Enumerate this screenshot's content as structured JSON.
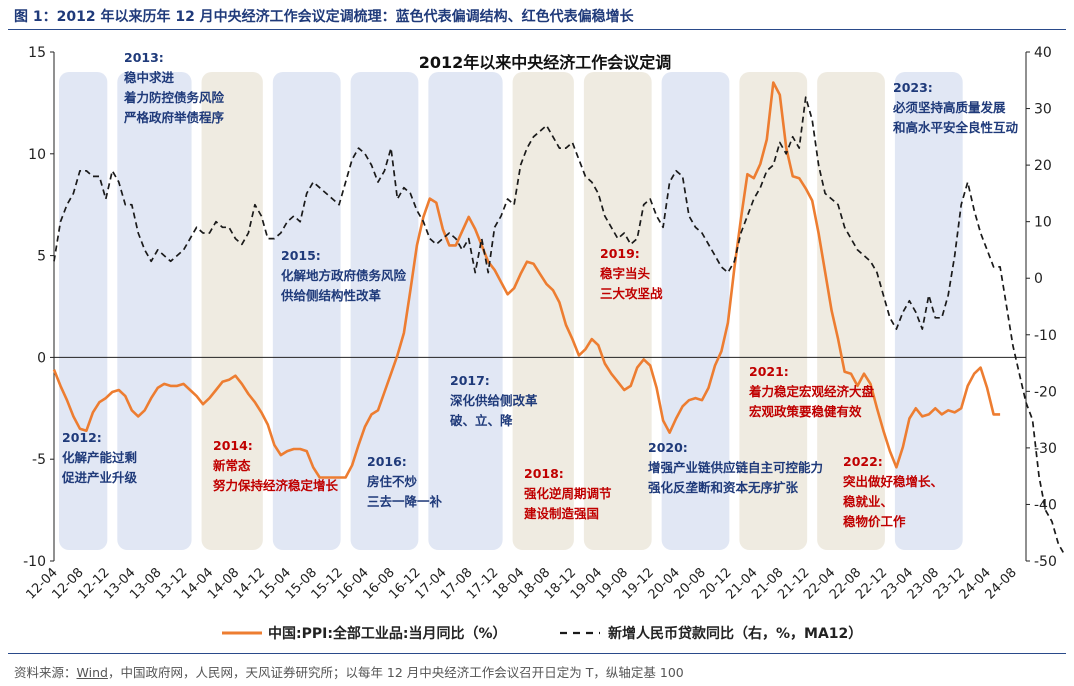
{
  "figure": {
    "title": "图 1：2012 年以来历年 12 月中央经济工作会议定调梳理：蓝色代表偏调结构、红色代表偏稳增长",
    "source_prefix": "资料来源：",
    "source_wind": "Wind",
    "source_rest": "，中国政府网，人民网，天风证券研究所；以每年 12 月中央经济工作会议召开日定为 T，纵轴定基 100"
  },
  "colors": {
    "ppi_line": "#ed7d31",
    "loan_line": "#1a1a1a",
    "blue_text": "#1f3a7a",
    "red_text": "#c00000",
    "blue_band": "#dce3f2",
    "beige_band": "#ece8dc"
  },
  "chart_data": {
    "type": "line",
    "title": "2012年以来中央经济工作会议定调",
    "left_axis": {
      "ylim": [
        -10,
        15
      ],
      "ticks": [
        "15",
        "10",
        "5",
        "0",
        "-5",
        "-10"
      ]
    },
    "right_axis": {
      "ylim": [
        -50,
        40
      ],
      "ticks": [
        "40",
        "30",
        "20",
        "10",
        "0",
        "-10",
        "-20",
        "-30",
        "-40",
        "-50"
      ]
    },
    "x_ticks": [
      "12-04",
      "12-08",
      "12-12",
      "13-04",
      "13-08",
      "13-12",
      "14-04",
      "14-08",
      "14-12",
      "15-04",
      "15-08",
      "15-12",
      "16-04",
      "16-08",
      "16-12",
      "17-04",
      "17-08",
      "17-12",
      "18-04",
      "18-08",
      "18-12",
      "19-04",
      "19-08",
      "19-12",
      "20-04",
      "20-08",
      "20-12",
      "21-04",
      "21-08",
      "21-12",
      "22-04",
      "22-08",
      "22-12",
      "23-04",
      "23-08",
      "23-12",
      "24-04",
      "24-08"
    ],
    "legend_position": "bottom",
    "series": [
      {
        "name": "中国:PPI:全部工业品:当月同比（%）",
        "axis": "left",
        "style": "solid",
        "values": [
          -0.6,
          -1.4,
          -2.1,
          -2.9,
          -3.5,
          -3.6,
          -2.7,
          -2.2,
          -2.0,
          -1.7,
          -1.6,
          -1.9,
          -2.6,
          -2.9,
          -2.6,
          -2.0,
          -1.5,
          -1.3,
          -1.4,
          -1.4,
          -1.3,
          -1.6,
          -1.9,
          -2.3,
          -2.0,
          -1.6,
          -1.2,
          -1.1,
          -0.9,
          -1.3,
          -1.8,
          -2.2,
          -2.7,
          -3.3,
          -4.3,
          -4.8,
          -4.6,
          -4.5,
          -4.5,
          -4.6,
          -5.4,
          -5.9,
          -5.9,
          -5.9,
          -5.9,
          -5.9,
          -5.3,
          -4.3,
          -3.4,
          -2.8,
          -2.6,
          -1.7,
          -0.8,
          0.1,
          1.2,
          3.3,
          5.5,
          6.9,
          7.8,
          7.6,
          6.3,
          5.5,
          5.5,
          6.2,
          6.9,
          6.3,
          5.5,
          4.7,
          4.3,
          3.7,
          3.1,
          3.4,
          4.1,
          4.7,
          4.6,
          4.1,
          3.6,
          3.3,
          2.7,
          1.6,
          0.9,
          0.1,
          0.4,
          0.9,
          0.6,
          -0.3,
          -0.8,
          -1.2,
          -1.6,
          -1.4,
          -0.5,
          -0.1,
          -0.4,
          -1.5,
          -3.1,
          -3.7,
          -3.0,
          -2.4,
          -2.1,
          -2.0,
          -2.1,
          -1.5,
          -0.4,
          0.3,
          1.7,
          4.4,
          6.8,
          9.0,
          8.8,
          9.5,
          10.7,
          13.5,
          12.9,
          10.3,
          8.9,
          8.8,
          8.3,
          7.7,
          6.1,
          4.2,
          2.3,
          0.9,
          -0.7,
          -0.8,
          -1.4,
          -0.8,
          -1.3,
          -2.5,
          -3.6,
          -4.6,
          -5.4,
          -4.4,
          -3.0,
          -2.5,
          -2.9,
          -2.8,
          -2.5,
          -2.8,
          -2.6,
          -2.7,
          -2.5,
          -1.4,
          -0.8,
          -0.5,
          -1.5,
          -2.8,
          -2.8
        ],
        "peak_annotation": {
          "x": "21-10",
          "value": 13.5
        },
        "trough_annotations": [
          {
            "x": "15-12",
            "value": -5.9
          },
          {
            "x": "23-06",
            "value": -5.4
          }
        ]
      },
      {
        "name": "新增人民币贷款同比（右，%，MA12）",
        "axis": "right",
        "style": "dashed",
        "values": [
          3,
          10,
          13,
          15,
          19,
          19,
          18,
          18,
          14,
          19,
          17,
          13,
          13,
          8,
          5,
          3,
          5,
          4,
          3,
          4,
          5,
          7,
          9,
          8,
          8,
          10,
          9,
          9,
          7,
          6,
          8,
          13,
          11,
          7,
          7,
          8,
          10,
          11,
          10,
          15,
          17,
          16,
          15,
          14,
          13,
          17,
          21,
          23,
          22,
          20,
          17,
          19,
          23,
          14,
          16,
          15,
          12,
          10,
          7,
          6,
          7,
          8,
          7,
          5,
          7,
          1,
          7,
          1,
          9,
          11,
          14,
          13,
          20,
          23,
          25,
          26,
          27,
          25,
          23,
          23,
          24,
          21,
          18,
          17,
          15,
          11,
          9,
          7,
          8,
          6,
          7,
          13,
          14,
          11,
          9,
          17,
          19,
          18,
          11,
          9,
          8,
          6,
          4,
          2,
          1,
          3,
          8,
          11,
          14,
          16,
          19,
          20,
          24,
          22,
          25,
          23,
          32,
          28,
          20,
          15,
          14,
          13,
          9,
          7,
          5,
          4,
          3,
          1,
          -3,
          -7,
          -9,
          -6,
          -4,
          -6,
          -9,
          -3,
          -7,
          -7,
          -3,
          4,
          13,
          17,
          12,
          8,
          5,
          2,
          2,
          -5,
          -12,
          -17,
          -22,
          -25,
          -35,
          -41,
          -43,
          -47,
          -49
        ]
      }
    ],
    "bands": [
      {
        "color": "blue",
        "from": "12-01",
        "to": "13-01"
      },
      {
        "color": "blue",
        "from": "13-01",
        "to": "14-02"
      },
      {
        "color": "beige",
        "from": "14-02",
        "to": "15-01"
      },
      {
        "color": "blue",
        "from": "15-01",
        "to": "16-01"
      },
      {
        "color": "blue",
        "from": "16-01",
        "to": "17-01"
      },
      {
        "color": "blue",
        "from": "17-01",
        "to": "18-02"
      },
      {
        "color": "beige",
        "from": "18-02",
        "to": "19-01"
      },
      {
        "color": "beige",
        "from": "19-01",
        "to": "20-01"
      },
      {
        "color": "blue",
        "from": "20-01",
        "to": "21-01"
      },
      {
        "color": "beige",
        "from": "21-01",
        "to": "22-01"
      },
      {
        "color": "beige",
        "from": "22-01",
        "to": "23-01"
      },
      {
        "color": "blue",
        "from": "23-01",
        "to": "24-01"
      }
    ],
    "annotations": [
      {
        "color": "blue",
        "at": "13-03",
        "lines": [
          "2013:",
          "稳中求进",
          "着力防控债务风险",
          "严格政府举债程序"
        ]
      },
      {
        "color": "blue",
        "at": "12-01",
        "lines": [
          "2012:",
          "化解产能过剩",
          "促进产业升级"
        ]
      },
      {
        "color": "red",
        "at": "14-02",
        "lines": [
          "2014:",
          "新常态",
          "努力保持经济稳定增长"
        ]
      },
      {
        "color": "blue",
        "at": "15-01",
        "lines": [
          "2015:",
          "化解地方政府债务风险",
          "供给侧结构性改革"
        ]
      },
      {
        "color": "blue",
        "at": "16-01",
        "lines": [
          "2016:",
          "房住不炒",
          "三去一降一补"
        ]
      },
      {
        "color": "blue",
        "at": "17-01",
        "lines": [
          "2017:",
          "深化供给侧改革",
          "破、立、降"
        ]
      },
      {
        "color": "red",
        "at": "18-02",
        "lines": [
          "2018:",
          "强化逆周期调节",
          "建设制造强国"
        ]
      },
      {
        "color": "red",
        "at": "19-01",
        "lines": [
          "2019:",
          "稳字当头",
          "三大攻坚战"
        ]
      },
      {
        "color": "blue",
        "at": "20-01",
        "lines": [
          "2020:",
          "增强产业链供应链自主可控能力",
          "强化反垄断和资本无序扩张"
        ]
      },
      {
        "color": "red",
        "at": "21-01",
        "lines": [
          "2021:",
          "着力稳定宏观经济大盘",
          "宏观政策要稳健有效"
        ]
      },
      {
        "color": "red",
        "at": "22-01",
        "lines": [
          "2022:",
          "突出做好稳增长、",
          "稳就业、",
          "稳物价工作"
        ]
      },
      {
        "color": "blue",
        "at": "23-01",
        "lines": [
          "2023:",
          "必须坚持高质量发展",
          "和高水平安全良性互动"
        ]
      }
    ]
  }
}
